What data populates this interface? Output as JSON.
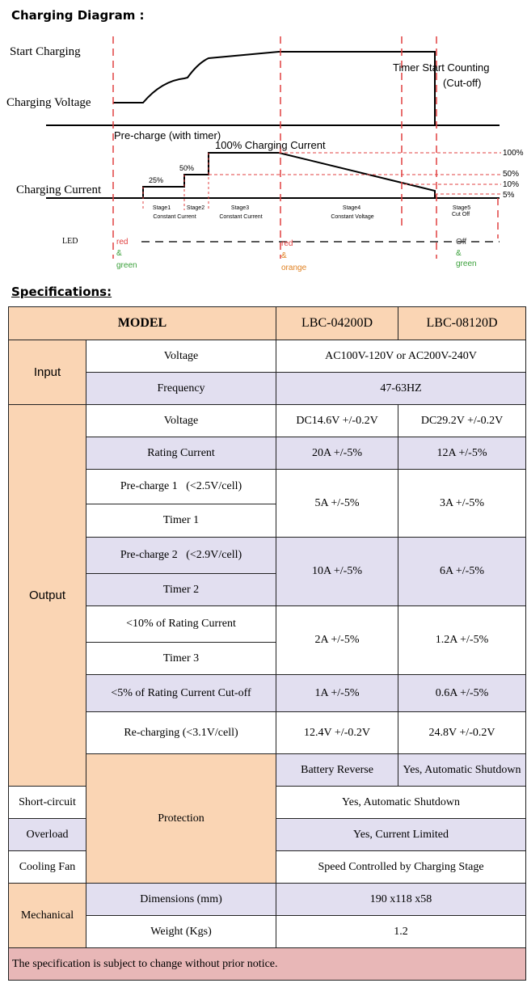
{
  "diagram": {
    "title": "Charging Diagram :",
    "start_charging": "Start Charging",
    "charging_voltage": "Charging Voltage",
    "charging_current": "Charging Current",
    "timer_line1": "Timer Start Counting",
    "timer_line2": "(Cut-off)",
    "precharge": "Pre-charge (with timer)",
    "full_current": "100% Charging Current",
    "pct_25": "25%",
    "pct_50": "50%",
    "r100": "100%",
    "r50": "50%",
    "r10": "10%",
    "r5": "5%",
    "stage1a": "Stage1",
    "stage1b": "Constant Current",
    "stage2": "Stage2",
    "stage3a": "Stage3",
    "stage3b": "Constant Current",
    "stage4a": "Stage4",
    "stage4b": "Constant Voltage",
    "stage5a": "Stage5",
    "stage5b": "Cut Off",
    "led": "LED",
    "led1_a": "red",
    "led1_b": "&",
    "led1_c": "green",
    "led2_a": "red",
    "led2_b": "&",
    "led2_c": "orange",
    "led3_a": "Off",
    "led3_b": "&",
    "led3_c": "green"
  },
  "spec": {
    "title": "Specifications:",
    "model_label": "MODEL",
    "model_a": "LBC-04200D",
    "model_b": "LBC-08120D",
    "input_label": "Input",
    "in_voltage_label": "Voltage",
    "in_voltage_value": "AC100V-120V or AC200V-240V",
    "frequency_label": "Frequency",
    "frequency_value": "47-63HZ",
    "output_label": "Output",
    "out_voltage_label": "Voltage",
    "out_voltage_a": "DC14.6V +/-0.2V",
    "out_voltage_b": "DC29.2V +/-0.2V",
    "rating_label": "Rating Current",
    "rating_a": "20A +/-5%",
    "rating_b": "12A +/-5%",
    "pre1_label": "Pre-charge 1   (<2.5V/cell)",
    "timer1_label": "Timer 1",
    "pre1_a": "5A +/-5%",
    "pre1_b": "3A +/-5%",
    "pre2_label": "Pre-charge 2   (<2.9V/cell)",
    "timer2_label": "Timer 2",
    "pre2_a": "10A +/-5%",
    "pre2_b": "6A +/-5%",
    "lt10_label": "<10% of Rating Current",
    "timer3_label": "Timer 3",
    "lt10_a": "2A +/-5%",
    "lt10_b": "1.2A +/-5%",
    "lt5_label": "<5% of Rating Current Cut-off",
    "lt5_a": "1A +/-5%",
    "lt5_b": "0.6A +/-5%",
    "recharge_label": "Re-charging (<3.1V/cell)",
    "recharge_a": "12.4V +/-0.2V",
    "recharge_b": "24.8V +/-0.2V",
    "protection_label": "Protection",
    "battery_reverse_label": "Battery Reverse",
    "battery_reverse_value": "Yes, Automatic Shutdown",
    "short_circuit_label": "Short-circuit",
    "short_circuit_value": "Yes, Automatic Shutdown",
    "overload_label": "Overload",
    "overload_value": "Yes, Current Limited",
    "cooling_fan_label": "Cooling Fan",
    "cooling_fan_value": "Speed Controlled by Charging Stage",
    "mechanical_label": "Mechanical",
    "dimensions_label": "Dimensions (mm)",
    "dimensions_value": "190 x118 x58",
    "weight_label": "Weight (Kgs)",
    "weight_value": "1.2",
    "note": "The specification is subject to change without prior notice."
  }
}
